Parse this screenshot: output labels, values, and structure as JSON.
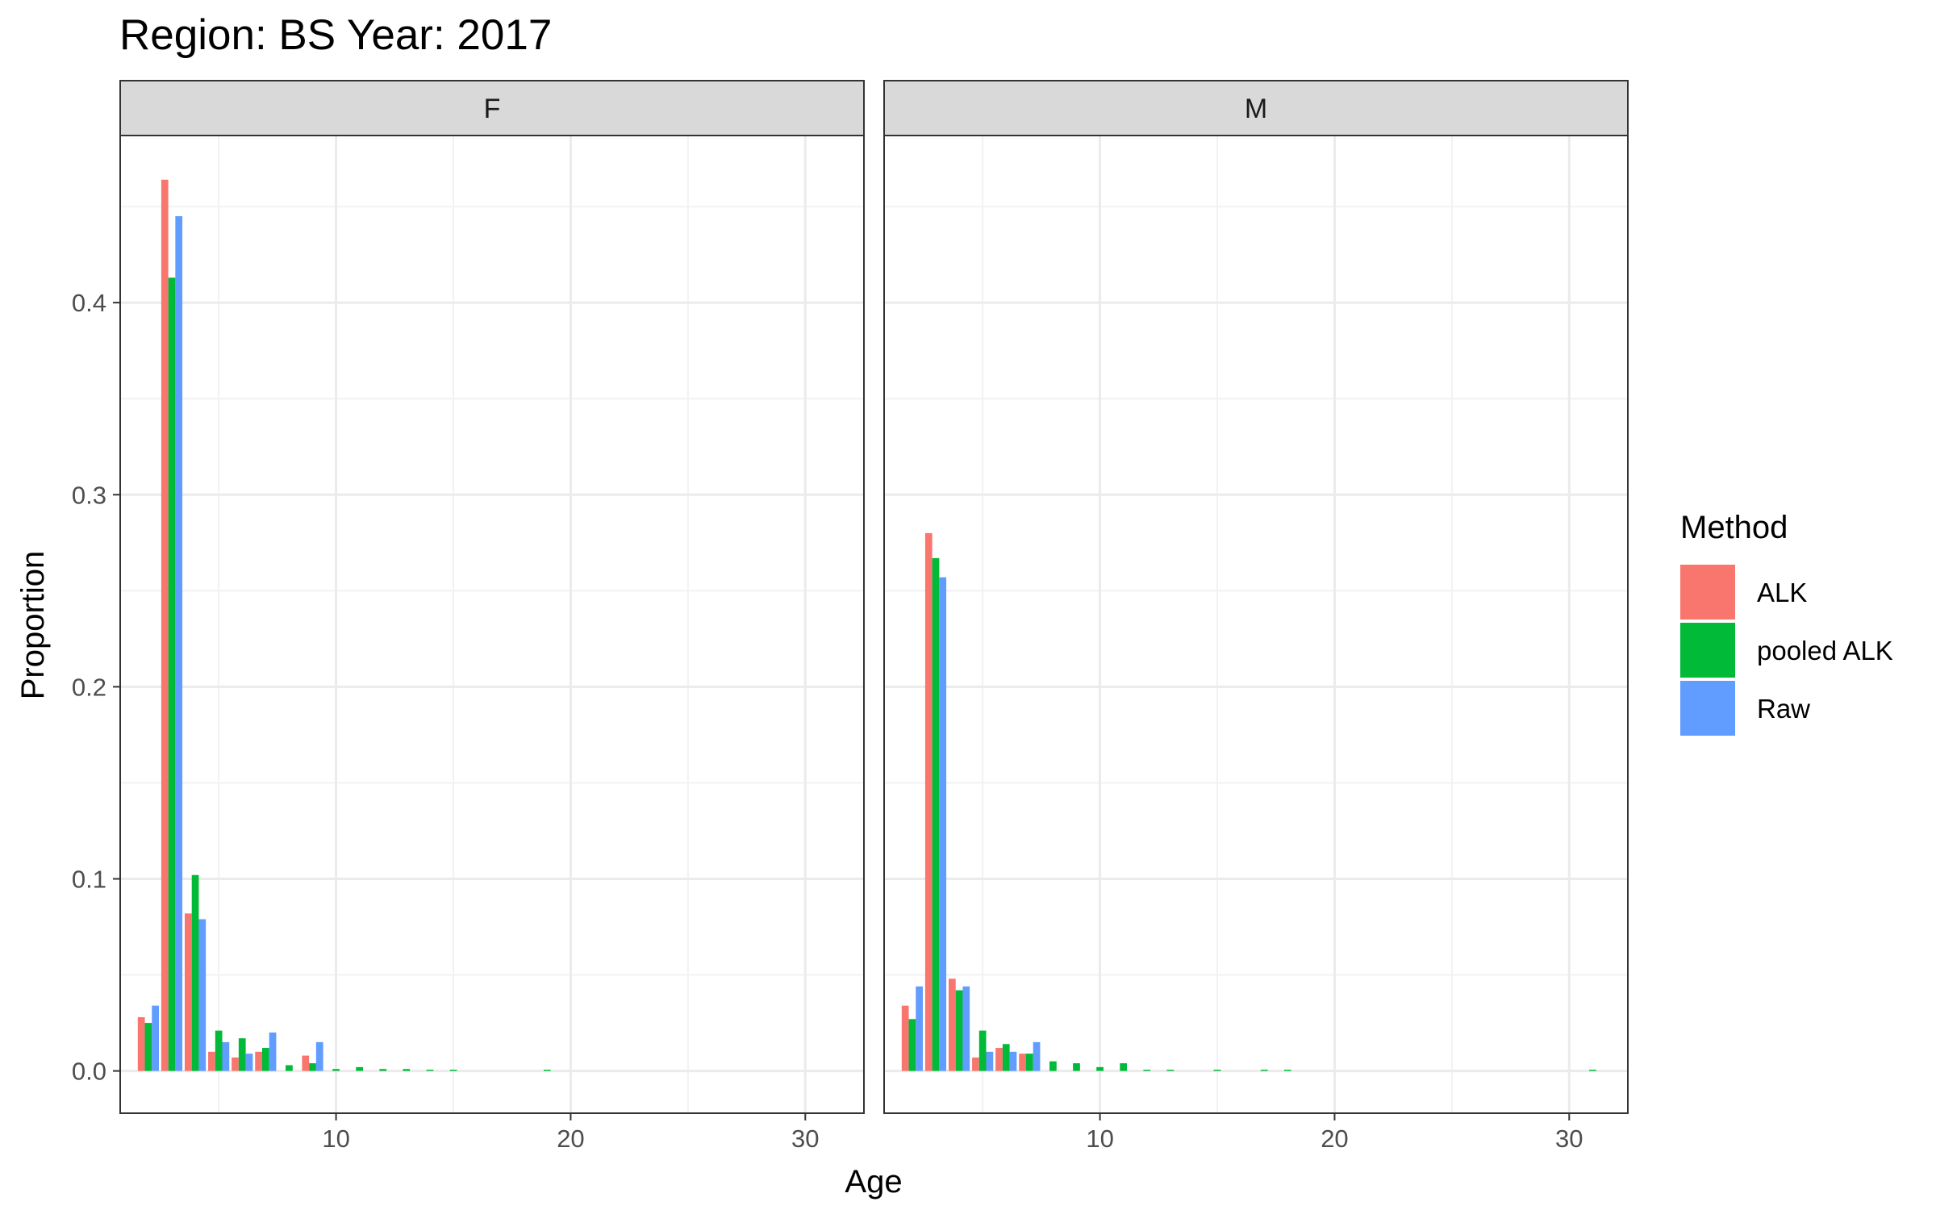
{
  "chart_data": {
    "type": "bar",
    "title": "Region: BS Year: 2017",
    "xlabel": "Age",
    "ylabel": "Proportion",
    "xlim": [
      0.8,
      32.5
    ],
    "ylim": [
      -0.022,
      0.487
    ],
    "x_ticks": [
      10,
      20,
      30
    ],
    "y_ticks": [
      0.0,
      0.1,
      0.2,
      0.3,
      0.4
    ],
    "y_tick_labels": [
      "0.0",
      "0.1",
      "0.2",
      "0.3",
      "0.4"
    ],
    "grid": true,
    "legend": {
      "title": "Method",
      "position": "right",
      "entries": [
        "ALK",
        "pooled ALK",
        "Raw"
      ]
    },
    "colors": {
      "ALK": "#F8766D",
      "pooled ALK": "#00BA38",
      "Raw": "#619CFF"
    },
    "panels": [
      {
        "label": "F",
        "series": [
          {
            "name": "ALK",
            "x": [
              2,
              3,
              4,
              5,
              6,
              7,
              9
            ],
            "values": [
              0.028,
              0.464,
              0.082,
              0.01,
              0.007,
              0.01,
              0.008
            ]
          },
          {
            "name": "pooled ALK",
            "x": [
              2,
              3,
              4,
              5,
              6,
              7,
              8,
              9,
              10,
              11,
              12,
              13,
              14,
              15,
              19
            ],
            "values": [
              0.025,
              0.413,
              0.102,
              0.021,
              0.017,
              0.012,
              0.003,
              0.004,
              0.001,
              0.002,
              0.001,
              0.001,
              0.0005,
              0.0005,
              0.0004
            ]
          },
          {
            "name": "Raw",
            "x": [
              2,
              3,
              4,
              5,
              6,
              7,
              9
            ],
            "values": [
              0.034,
              0.445,
              0.079,
              0.015,
              0.009,
              0.02,
              0.015
            ]
          }
        ]
      },
      {
        "label": "M",
        "series": [
          {
            "name": "ALK",
            "x": [
              2,
              3,
              4,
              5,
              6,
              7
            ],
            "values": [
              0.034,
              0.28,
              0.048,
              0.007,
              0.012,
              0.009
            ]
          },
          {
            "name": "pooled ALK",
            "x": [
              2,
              3,
              4,
              5,
              6,
              7,
              8,
              9,
              10,
              11,
              12,
              13,
              15,
              17,
              18,
              31
            ],
            "values": [
              0.027,
              0.267,
              0.042,
              0.021,
              0.014,
              0.009,
              0.005,
              0.004,
              0.002,
              0.004,
              0.0005,
              0.0005,
              0.0005,
              0.0005,
              0.0005,
              0.0005
            ]
          },
          {
            "name": "Raw",
            "x": [
              2,
              3,
              4,
              5,
              6,
              7
            ],
            "values": [
              0.044,
              0.257,
              0.044,
              0.01,
              0.01,
              0.015
            ]
          }
        ]
      }
    ]
  }
}
